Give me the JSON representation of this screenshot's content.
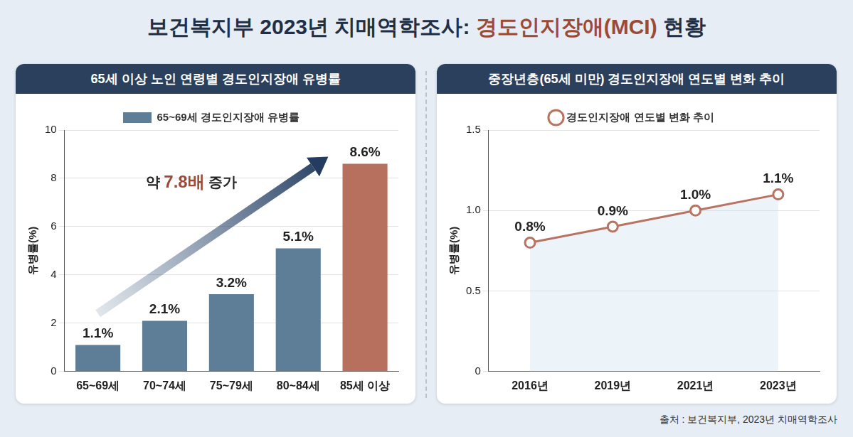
{
  "page": {
    "title": "보건복지부 2023년 치매역학조사: 경도인지장애(MCI) 현황",
    "title_highlight": "경도인지장애(MCI)",
    "source": "출처 : 보건복지부, 2023년 치매역학조사"
  },
  "chart_data": [
    {
      "type": "bar",
      "title": "65세 이상 노인 연령별 경도인지장애 유병률",
      "y_label": "유병률(%)",
      "categories": [
        "65~69세",
        "70~74세",
        "75~79세",
        "80~84세",
        "85세 이상"
      ],
      "series": [
        {
          "name": "65~69세 경도인지장애 유병률",
          "color": "#5e7d97",
          "colors": [
            "#5e7d97",
            "#5e7d97",
            "#5e7d97",
            "#5e7d97",
            "#b8705e"
          ],
          "values": [
            1.1,
            2.1,
            3.2,
            5.1,
            8.6
          ],
          "value_labels": [
            "1.1%",
            "2.1%",
            "3.2%",
            "5.1%",
            "8.6%"
          ]
        }
      ],
      "ylim": [
        0,
        10
      ],
      "yticks": [
        0,
        2,
        4,
        6,
        8,
        10
      ],
      "grid": true,
      "legend": "top",
      "data_labels": true,
      "annotation": {
        "text": "약 7.8배 증가",
        "highlight": "7.8배"
      }
    },
    {
      "type": "line",
      "title": "중장년층(65세 미만) 경도인지장애 연도별 변화 추이",
      "y_label": "유병률(%)",
      "categories": [
        "2016년",
        "2019년",
        "2021년",
        "2023년"
      ],
      "series": [
        {
          "name": "경도인지장애 연도별 변화 추이",
          "color": "#b87462",
          "marker": "circle",
          "values": [
            0.8,
            0.9,
            1.0,
            1.1
          ],
          "value_labels": [
            "0.8%",
            "0.9%",
            "1.0%",
            "1.1%"
          ]
        }
      ],
      "ylim": [
        0,
        1.5
      ],
      "yticks": [
        0,
        0.5,
        {
          "value": 1,
          "label": "1.0"
        },
        1.5
      ],
      "grid": true,
      "legend": "top",
      "data_labels": true
    }
  ]
}
